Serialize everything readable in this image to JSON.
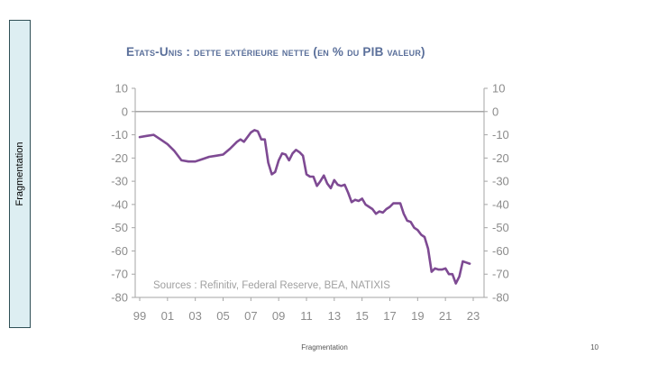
{
  "sidebar": {
    "label": "Fragmentation"
  },
  "footer": {
    "label": "Fragmentation",
    "page_number": "10"
  },
  "chart_data": {
    "type": "line",
    "title": "Etats-Unis : dette extérieure nette (en % du PIB valeur)",
    "annotation": "Sources : Refinitiv, Federal Reserve, BEA, NATIXIS",
    "xlabel": "",
    "ylabel": "",
    "xlim": [
      1999,
      2023
    ],
    "ylim": [
      -80,
      10
    ],
    "x_ticks": [
      1999,
      2001,
      2003,
      2005,
      2007,
      2009,
      2011,
      2013,
      2015,
      2017,
      2019,
      2021,
      2023
    ],
    "x_tick_labels": [
      "99",
      "01",
      "03",
      "05",
      "07",
      "09",
      "11",
      "13",
      "15",
      "17",
      "19",
      "21",
      "23"
    ],
    "y_ticks": [
      10,
      0,
      -10,
      -20,
      -30,
      -40,
      -50,
      -60,
      -70,
      -80
    ],
    "y_axis_right": true,
    "grid": false,
    "line_color": "#7e4a93",
    "zero_line_color": "#a6a6a6",
    "series": [
      {
        "x": [
          1999.0,
          1999.5,
          2000.0,
          2000.5,
          2001.0,
          2001.5,
          2002.0,
          2002.5,
          2003.0,
          2003.5,
          2004.0,
          2004.5,
          2005.0,
          2005.5,
          2006.0,
          2006.25,
          2006.5,
          2006.75,
          2007.0,
          2007.25,
          2007.5,
          2007.75,
          2008.0,
          2008.25,
          2008.5,
          2008.75,
          2009.0,
          2009.25,
          2009.5,
          2009.75,
          2010.0,
          2010.25,
          2010.5,
          2010.75,
          2011.0,
          2011.25,
          2011.5,
          2011.75,
          2012.0,
          2012.25,
          2012.5,
          2012.75,
          2013.0,
          2013.25,
          2013.5,
          2013.75,
          2014.0,
          2014.25,
          2014.5,
          2014.75,
          2015.0,
          2015.25,
          2015.5,
          2015.75,
          2016.0,
          2016.25,
          2016.5,
          2016.75,
          2017.0,
          2017.25,
          2017.5,
          2017.75,
          2018.0,
          2018.25,
          2018.5,
          2018.75,
          2019.0,
          2019.25,
          2019.5,
          2019.75,
          2020.0,
          2020.25,
          2020.5,
          2020.75,
          2021.0,
          2021.25,
          2021.5,
          2021.75,
          2022.0,
          2022.25,
          2022.5,
          2022.75
        ],
        "values": [
          -11,
          -10.5,
          -10,
          -12,
          -14,
          -17,
          -21,
          -21.5,
          -21.5,
          -20.5,
          -19.5,
          -19,
          -18.5,
          -16,
          -13,
          -12,
          -13,
          -11,
          -9,
          -8,
          -8.5,
          -12,
          -12,
          -22,
          -27,
          -26,
          -21,
          -18,
          -18.5,
          -21,
          -18,
          -16.5,
          -17.5,
          -19,
          -27,
          -28,
          -28,
          -32,
          -30,
          -27.5,
          -31,
          -33,
          -29.5,
          -31.5,
          -32,
          -31.5,
          -35,
          -39,
          -38,
          -38.5,
          -37.5,
          -40,
          -41,
          -42,
          -44,
          -43,
          -43.5,
          -42,
          -41,
          -39.5,
          -39.5,
          -39.5,
          -44,
          -47,
          -47.5,
          -50,
          -51,
          -53,
          -54,
          -59,
          -69,
          -67.5,
          -68,
          -68,
          -67.5,
          -70,
          -70,
          -74,
          -71,
          -64.5,
          -65,
          -65.5
        ]
      }
    ]
  }
}
